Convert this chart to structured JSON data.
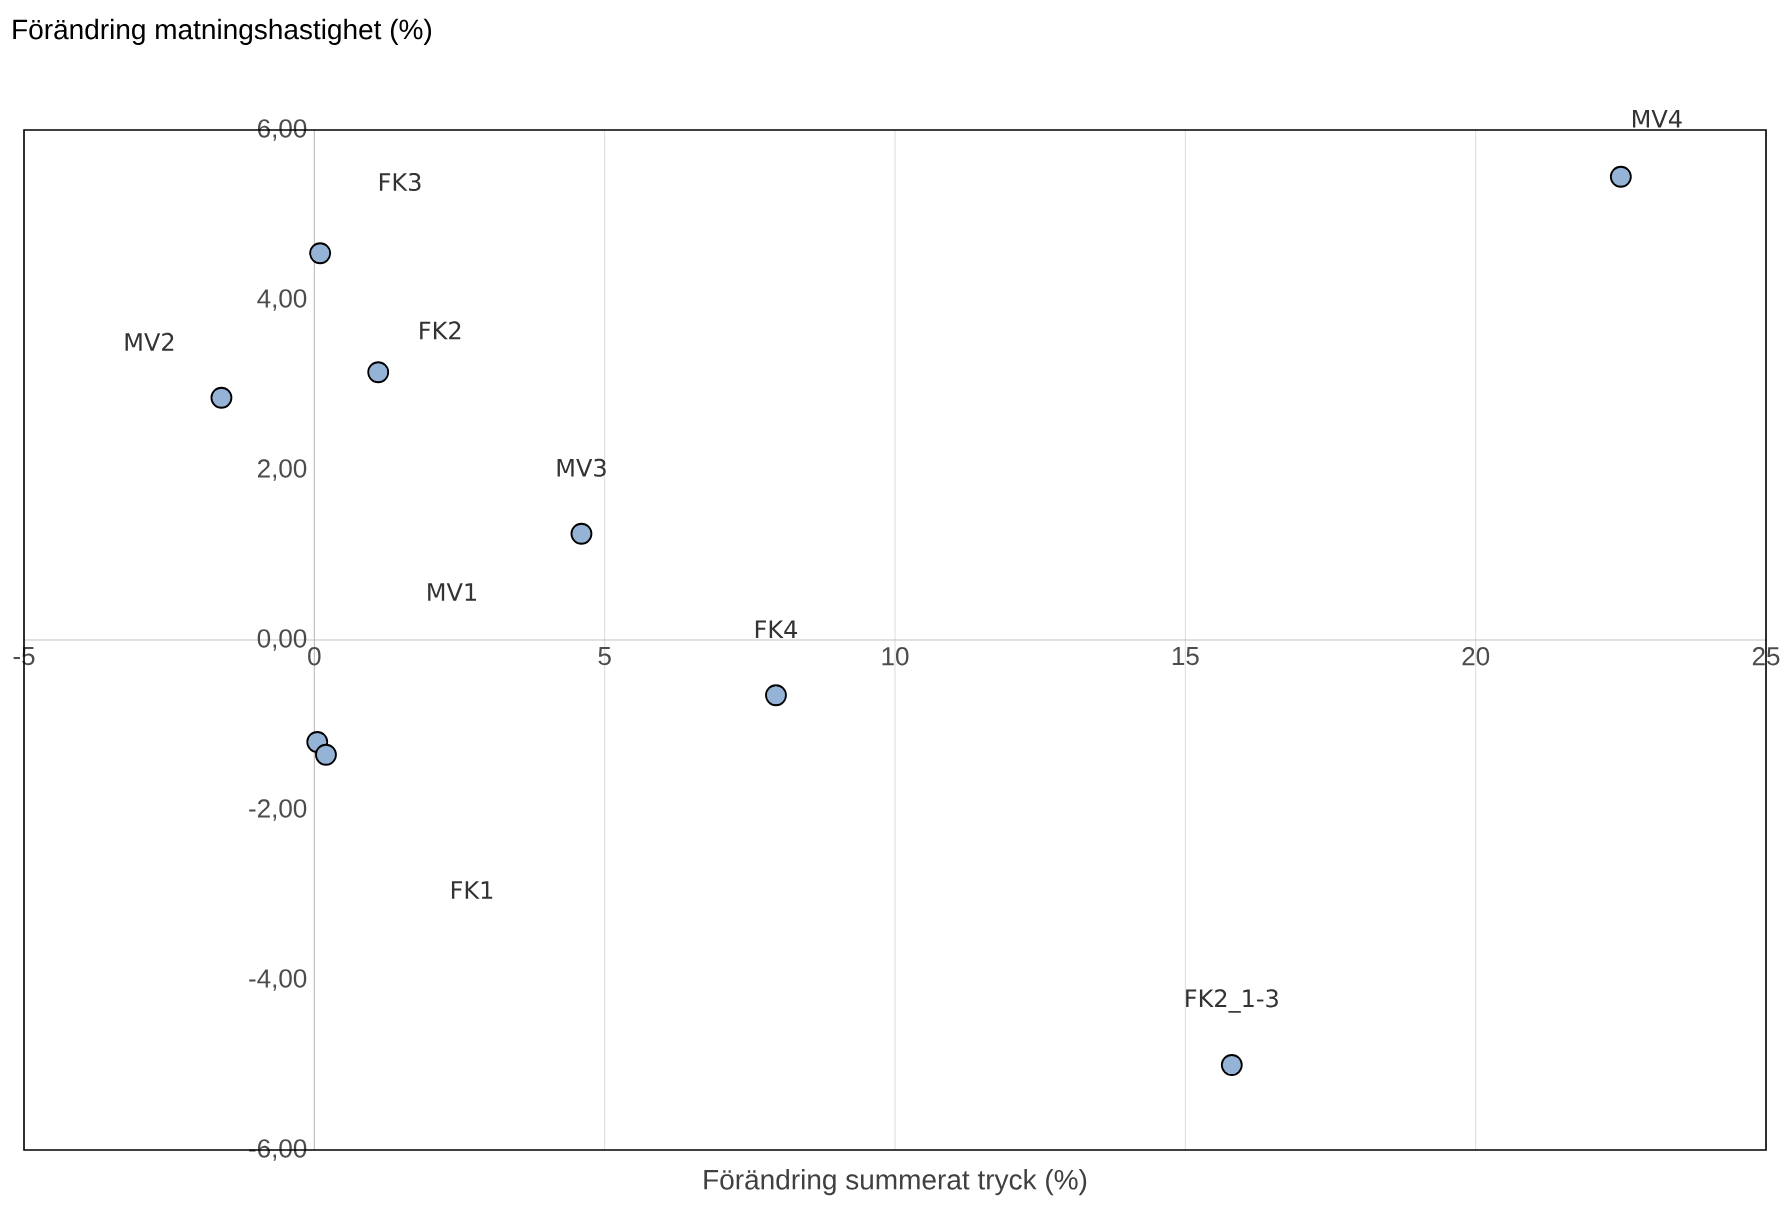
{
  "chart_data": {
    "type": "scatter",
    "xlabel": "Förändring summerat tryck (%)",
    "ylabel": "Förändring matningshastighet (%)",
    "x": [
      22.5,
      0.1,
      1.1,
      -1.6,
      4.6,
      0.05,
      7.95,
      0.2,
      15.8
    ],
    "values": [
      5.45,
      4.55,
      3.15,
      2.85,
      1.25,
      -1.2,
      -0.65,
      -1.35,
      -5.0
    ],
    "color": "#95b3d7",
    "marker": "circle",
    "grid": "x",
    "xlim": [
      -5,
      25
    ],
    "ylim": [
      -6,
      6
    ],
    "xticks": [
      -5,
      0,
      5,
      10,
      15,
      20,
      25
    ],
    "yticks": [
      {
        "value": -6,
        "label": "-6,00"
      },
      {
        "value": -4,
        "label": "-4,00"
      },
      {
        "value": -2,
        "label": "-2,00"
      },
      {
        "value": 0,
        "label": "0,00"
      },
      {
        "value": 2,
        "label": "2,00"
      },
      {
        "value": 4,
        "label": "4,00"
      },
      {
        "value": 6,
        "label": "6,00"
      }
    ],
    "annotations": [
      {
        "text": "MV4",
        "x": 22.5,
        "y": 5.45
      },
      "FK3",
      {
        "text": "FK2",
        "x": 1.1,
        "y": 3.15
      },
      {
        "text": "MV2",
        "x": -1.6,
        "y": 2.85
      },
      {
        "text": "MV3",
        "x": 4.6,
        "y": 1.25
      },
      "MV1",
      {
        "text": "FK4",
        "x": 7.95,
        "y": -0.65
      },
      "FK1",
      {
        "text": "FK2_1-3",
        "x": 15.8,
        "y": -5.0
      }
    ]
  }
}
